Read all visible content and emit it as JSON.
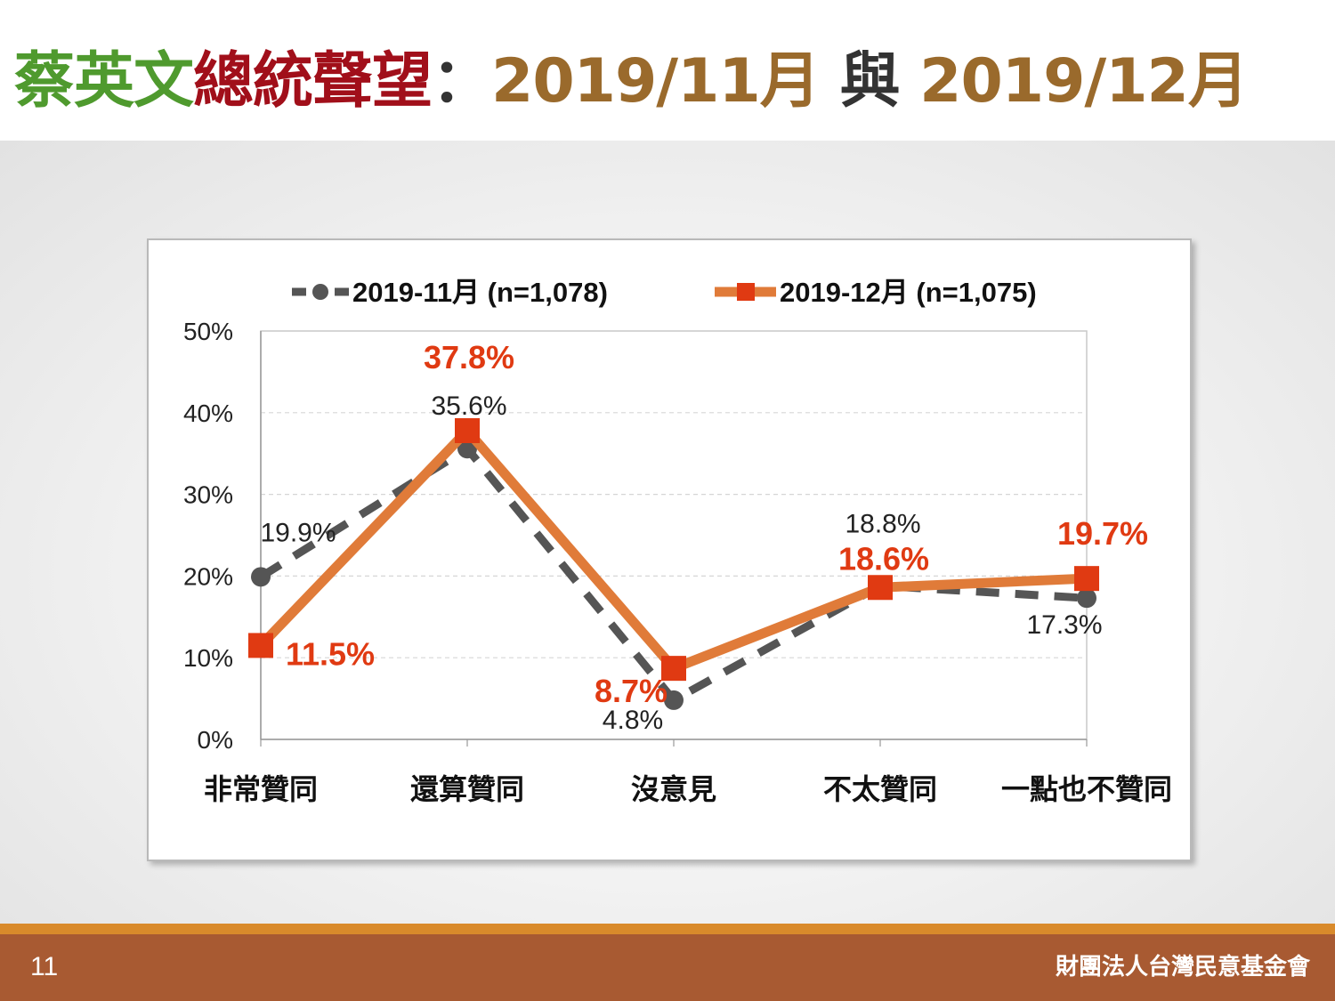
{
  "header": {
    "title_part1": "蔡英文",
    "title_part2": "總統聲望",
    "title_colon": "：",
    "title_part3": "2019/11月",
    "title_connector": " 與 ",
    "title_part4": "2019/12月"
  },
  "footer": {
    "page_number": "11",
    "organization": "財團法人台灣民意基金會"
  },
  "colors": {
    "series1": "#555555",
    "series2": "#e07b39",
    "series2_marker": "#e03a12",
    "label_red": "#e03a12"
  },
  "chart_data": {
    "type": "line",
    "categories": [
      "非常贊同",
      "還算贊同",
      "沒意見",
      "不太贊同",
      "一點也不贊同"
    ],
    "y_ticks": [
      "0%",
      "10%",
      "20%",
      "30%",
      "40%",
      "50%"
    ],
    "ylim": [
      0,
      50
    ],
    "grid": true,
    "legend_position": "top",
    "series": [
      {
        "name": "2019-11月  (n=1,078)",
        "values": [
          19.9,
          35.6,
          4.8,
          18.8,
          17.3
        ],
        "labels": [
          "19.9%",
          "35.6%",
          "4.8%",
          "18.8%",
          "17.3%"
        ],
        "style": "dashed",
        "marker": "circle"
      },
      {
        "name": "2019-12月  (n=1,075)",
        "values": [
          11.5,
          37.8,
          8.7,
          18.6,
          19.7
        ],
        "labels": [
          "11.5%",
          "37.8%",
          "8.7%",
          "18.6%",
          "19.7%"
        ],
        "style": "solid",
        "marker": "square"
      }
    ]
  }
}
